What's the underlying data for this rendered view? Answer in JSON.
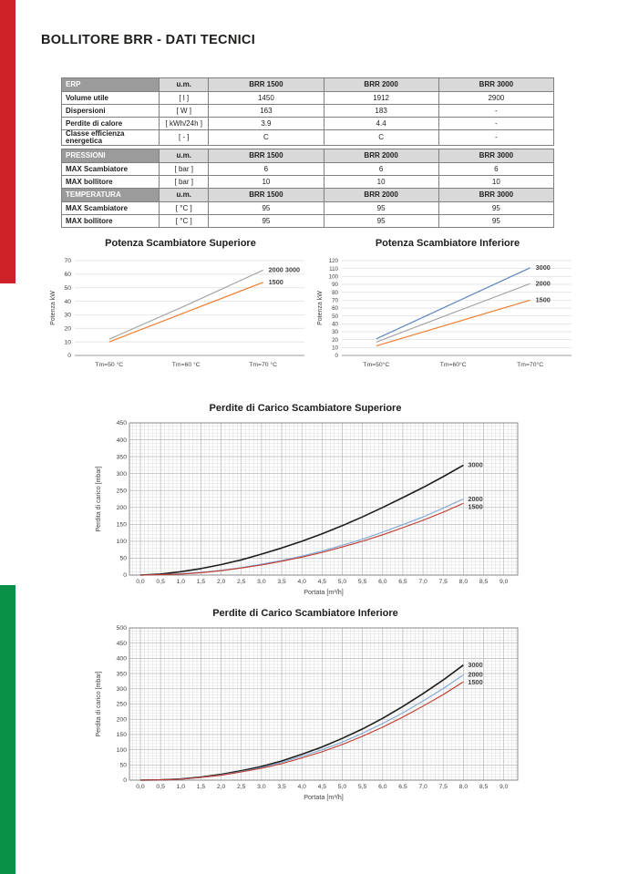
{
  "page": {
    "title": "BOLLITORE BRR - DATI TECNICI"
  },
  "colors": {
    "red_bar": "#cd2127",
    "green_bar": "#0a9148",
    "table_header_dark": "#9b9b9b",
    "table_header_light": "#d9d9d9",
    "grid_minor": "#dcdcdc",
    "grid_major": "#b3b3b3",
    "plot_border": "#7f7f7f"
  },
  "tables": [
    {
      "name": "erp",
      "sections": [
        {
          "header": [
            "ERP",
            "u.m.",
            "BRR 1500",
            "BRR 2000",
            "BRR 3000"
          ],
          "rows": [
            [
              "Volume utile",
              "[ l ]",
              "1450",
              "1912",
              "2900"
            ],
            [
              "Dispersioni",
              "[ W ]",
              "163",
              "183",
              "-"
            ],
            [
              "Perdite di calore",
              "[ kWh/24h ]",
              "3.9",
              "4.4",
              "-"
            ],
            [
              "Classe efficienza energetica",
              "[ - ]",
              "C",
              "C",
              "-"
            ]
          ]
        }
      ]
    },
    {
      "name": "pressioni-temperatura",
      "sections": [
        {
          "header": [
            "PRESSIONI",
            "u.m.",
            "BRR 1500",
            "BRR 2000",
            "BRR 3000"
          ],
          "rows": [
            [
              "MAX Scambiatore",
              "[ bar ]",
              "6",
              "6",
              "6"
            ],
            [
              "MAX bollitore",
              "[ bar ]",
              "10",
              "10",
              "10"
            ]
          ]
        },
        {
          "header": [
            "TEMPERATURA",
            "u.m.",
            "BRR 1500",
            "BRR 2000",
            "BRR 3000"
          ],
          "rows": [
            [
              "MAX Scambiatore",
              "[ °C ]",
              "95",
              "95",
              "95"
            ],
            [
              "MAX bollitore",
              "[ °C ]",
              "95",
              "95",
              "95"
            ]
          ]
        }
      ]
    }
  ],
  "chart_data": [
    {
      "type": "line",
      "title": "Potenza Scambiatore Superiore",
      "ylabel": "Potenza kW",
      "ylim": [
        0,
        70
      ],
      "y_step": 10,
      "grid": "horizontal-only",
      "legend_position": "line-end-labels",
      "categories": [
        "Tm=50 °C",
        "Tm=60 °C",
        "Tm=70 °C"
      ],
      "series": [
        {
          "name": "2000 3000",
          "color": "#a6a6a6",
          "values": [
            12,
            37,
            63
          ]
        },
        {
          "name": "1500",
          "color": "#ed7d31",
          "values": [
            10,
            32,
            54
          ]
        }
      ]
    },
    {
      "type": "line",
      "title": "Potenza Scambiatore Inferiore",
      "ylabel": "Potenza kW",
      "ylim": [
        0,
        120
      ],
      "y_step": 10,
      "grid": "horizontal-only",
      "legend_position": "line-end-labels",
      "categories": [
        "Tm=50°C",
        "Tm=60°C",
        "Tm=70°C"
      ],
      "series": [
        {
          "name": "3000",
          "color": "#5f87bd",
          "values": [
            21,
            66,
            111
          ]
        },
        {
          "name": "2000",
          "color": "#a6a6a6",
          "values": [
            17,
            54,
            91
          ]
        },
        {
          "name": "1500",
          "color": "#ed7d31",
          "values": [
            12,
            41,
            70
          ]
        }
      ]
    },
    {
      "type": "line",
      "title": "Perdite di Carico Scambiatore Superiore",
      "ylabel": "Perdita di carico [mbar]",
      "xlabel": "Portata [m³/h]",
      "ylim": [
        0,
        450
      ],
      "y_step": 50,
      "y_minor": 10,
      "xlim": [
        0,
        9
      ],
      "x_step": 0.5,
      "x_minor": 0.1,
      "grid": "fine-both",
      "legend_position": "line-end-labels",
      "x_ticks": [
        "0,0",
        "0,5",
        "1,0",
        "1,5",
        "2,0",
        "2,5",
        "3,0",
        "3,5",
        "4,0",
        "4,5",
        "5,0",
        "5,5",
        "6,0",
        "6,5",
        "7,0",
        "7,5",
        "8,0",
        "8,5",
        "9,0"
      ],
      "series": [
        {
          "name": "3000",
          "color": "#1d1d1b",
          "x_start": 0,
          "x_step_data": 0.5,
          "values": [
            0,
            3,
            10,
            19,
            31,
            45,
            62,
            80,
            100,
            122,
            146,
            172,
            200,
            229,
            259,
            291,
            325
          ]
        },
        {
          "name": "2000",
          "color": "#7da7d8",
          "x_start": 0,
          "x_step_data": 0.5,
          "values": [
            0,
            1,
            4,
            8,
            14,
            22,
            32,
            43,
            56,
            71,
            88,
            106,
            127,
            149,
            172,
            198,
            225
          ]
        },
        {
          "name": "1500",
          "color": "#c0392b",
          "x_start": 0,
          "x_step_data": 0.5,
          "values": [
            0,
            1,
            3,
            7,
            13,
            21,
            30,
            41,
            53,
            67,
            83,
            100,
            119,
            140,
            162,
            186,
            212
          ]
        }
      ]
    },
    {
      "type": "line",
      "title": "Perdite di Carico Scambiatore Inferiore",
      "ylabel": "Perdita di carico [mbar]",
      "xlabel": "Portata [m³/h]",
      "ylim": [
        0,
        500
      ],
      "y_step": 50,
      "y_minor": 10,
      "xlim": [
        0,
        9
      ],
      "x_step": 0.5,
      "x_minor": 0.1,
      "grid": "fine-both",
      "legend_position": "line-end-labels",
      "x_ticks": [
        "0,0",
        "0,5",
        "1,0",
        "1,5",
        "2,0",
        "2,5",
        "3,0",
        "3,5",
        "4,0",
        "4,5",
        "5,0",
        "5,5",
        "6,0",
        "6,5",
        "7,0",
        "7,5",
        "8,0",
        "8,5",
        "9,0"
      ],
      "series": [
        {
          "name": "3000",
          "color": "#1d1d1b",
          "x_start": 0,
          "x_step_data": 0.5,
          "values": [
            0,
            1,
            4,
            10,
            19,
            31,
            45,
            63,
            85,
            109,
            137,
            168,
            203,
            242,
            284,
            329,
            378
          ]
        },
        {
          "name": "2000",
          "color": "#7da7d8",
          "x_start": 0,
          "x_step_data": 0.5,
          "values": [
            0,
            1,
            4,
            9,
            17,
            28,
            41,
            58,
            78,
            100,
            125,
            154,
            186,
            221,
            260,
            301,
            346
          ]
        },
        {
          "name": "1500",
          "color": "#c0392b",
          "x_start": 0,
          "x_step_data": 0.5,
          "values": [
            0,
            1,
            3,
            9,
            16,
            27,
            39,
            54,
            73,
            93,
            117,
            144,
            174,
            207,
            243,
            281,
            323
          ]
        }
      ]
    }
  ]
}
